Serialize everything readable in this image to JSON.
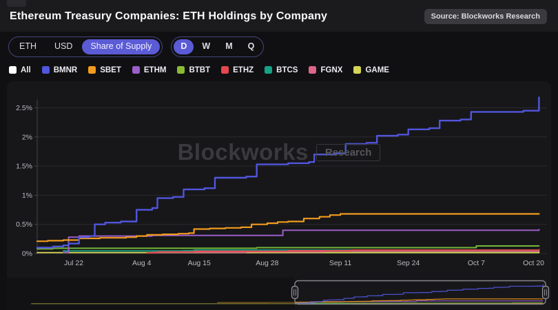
{
  "header": {
    "title": "Ethereum Treasury Companies: ETH Holdings by Company",
    "source_badge": "Source: Blockworks Research"
  },
  "controls": {
    "unit_toggle": [
      {
        "label": "ETH",
        "selected": false
      },
      {
        "label": "USD",
        "selected": false
      },
      {
        "label": "Share of Supply",
        "selected": true
      }
    ],
    "interval_toggle": [
      {
        "label": "D",
        "selected": true
      },
      {
        "label": "W",
        "selected": false
      },
      {
        "label": "M",
        "selected": false
      },
      {
        "label": "Q",
        "selected": false
      }
    ],
    "accent_color": "#5b5bd6"
  },
  "legend": {
    "items": [
      {
        "label": "All",
        "color": "#ffffff"
      },
      {
        "label": "BMNR",
        "color": "#5156dd"
      },
      {
        "label": "SBET",
        "color": "#f29b1d"
      },
      {
        "label": "ETHM",
        "color": "#9a5fc9"
      },
      {
        "label": "BTBT",
        "color": "#8bbb33"
      },
      {
        "label": "ETHZ",
        "color": "#e5484d"
      },
      {
        "label": "BTCS",
        "color": "#15a285"
      },
      {
        "label": "FGNX",
        "color": "#dc6589"
      },
      {
        "label": "GAME",
        "color": "#d5d655"
      }
    ]
  },
  "watermark": {
    "text": "Blockworks",
    "badge": "Research"
  },
  "chart_data": {
    "type": "line",
    "step": true,
    "title": "Ethereum Treasury Companies: ETH Holdings by Company",
    "unit": "Share of Supply (%)",
    "ylim": [
      0,
      2.75
    ],
    "grid": true,
    "y_ticks": [
      {
        "label": "0%",
        "value": 0
      },
      {
        "label": "0.5%",
        "value": 0.5
      },
      {
        "label": "1%",
        "value": 1
      },
      {
        "label": "1.5%",
        "value": 1.5
      },
      {
        "label": "2%",
        "value": 2
      },
      {
        "label": "2.5%",
        "value": 2.5
      }
    ],
    "x_domain_days": [
      0,
      97
    ],
    "x_ticks": [
      {
        "label": "Jul 22",
        "day": 7
      },
      {
        "label": "Aug 4",
        "day": 20
      },
      {
        "label": "Aug 15",
        "day": 31
      },
      {
        "label": "Aug 28",
        "day": 44
      },
      {
        "label": "Sep 11",
        "day": 58
      },
      {
        "label": "Sep 24",
        "day": 71
      },
      {
        "label": "Oct 7",
        "day": 84
      },
      {
        "label": "Oct 20",
        "day": 97
      }
    ],
    "series": [
      {
        "name": "GAME",
        "color": "#d5d655",
        "width": 1.8,
        "pre_points": [
          [
            -102,
            0.015
          ]
        ],
        "points": [
          [
            0,
            0.015
          ],
          [
            96,
            0.025
          ]
        ]
      },
      {
        "name": "FGNX",
        "color": "#dc6589",
        "width": 1.8,
        "points": [
          [
            22,
            0.02
          ],
          [
            40,
            0.03
          ],
          [
            55,
            0.04
          ],
          [
            96,
            0.045
          ]
        ]
      },
      {
        "name": "BTCS",
        "color": "#15a285",
        "width": 1.8,
        "points": [
          [
            5,
            0.045
          ],
          [
            28,
            0.05
          ],
          [
            30,
            0.06
          ],
          [
            96,
            0.065
          ]
        ]
      },
      {
        "name": "ETHZ",
        "color": "#e5484d",
        "width": 1.8,
        "points": [
          [
            21,
            0.01
          ],
          [
            23,
            0.03
          ],
          [
            30,
            0.04
          ],
          [
            48,
            0.05
          ],
          [
            60,
            0.06
          ],
          [
            96,
            0.07
          ]
        ]
      },
      {
        "name": "BTBT",
        "color": "#76b83a",
        "width": 2,
        "points": [
          [
            0,
            0.08
          ],
          [
            3,
            0.09
          ],
          [
            40,
            0.09
          ],
          [
            42,
            0.1
          ],
          [
            82,
            0.1
          ],
          [
            84,
            0.13
          ],
          [
            96,
            0.13
          ]
        ]
      },
      {
        "name": "ETHM",
        "color": "#9a5fc9",
        "width": 2,
        "points": [
          [
            5,
            0.02
          ],
          [
            6,
            0.28
          ],
          [
            8,
            0.3
          ],
          [
            20,
            0.3
          ],
          [
            22,
            0.31
          ],
          [
            45,
            0.31
          ],
          [
            47,
            0.4
          ],
          [
            94,
            0.4
          ],
          [
            96,
            0.41
          ]
        ]
      },
      {
        "name": "SBET",
        "color": "#f29b1d",
        "width": 2.2,
        "pre_points": [
          [
            -30,
            0.17
          ],
          [
            -10,
            0.19
          ]
        ],
        "points": [
          [
            0,
            0.21
          ],
          [
            2,
            0.22
          ],
          [
            5,
            0.23
          ],
          [
            8,
            0.26
          ],
          [
            12,
            0.27
          ],
          [
            17,
            0.28
          ],
          [
            19,
            0.3
          ],
          [
            21,
            0.32
          ],
          [
            24,
            0.33
          ],
          [
            27,
            0.34
          ],
          [
            29,
            0.35
          ],
          [
            30,
            0.42
          ],
          [
            33,
            0.43
          ],
          [
            36,
            0.44
          ],
          [
            39,
            0.45
          ],
          [
            41,
            0.5
          ],
          [
            44,
            0.52
          ],
          [
            46,
            0.54
          ],
          [
            48,
            0.55
          ],
          [
            51,
            0.6
          ],
          [
            54,
            0.63
          ],
          [
            56,
            0.66
          ],
          [
            58,
            0.68
          ],
          [
            96,
            0.68
          ]
        ]
      },
      {
        "name": "BMNR",
        "color": "#5156dd",
        "width": 2.4,
        "points": [
          [
            0,
            0.1
          ],
          [
            3,
            0.12
          ],
          [
            5,
            0.14
          ],
          [
            6,
            0.17
          ],
          [
            8,
            0.28
          ],
          [
            10,
            0.3
          ],
          [
            11,
            0.5
          ],
          [
            13,
            0.53
          ],
          [
            16,
            0.55
          ],
          [
            19,
            0.75
          ],
          [
            22,
            0.78
          ],
          [
            23,
            0.95
          ],
          [
            26,
            0.97
          ],
          [
            28,
            1.1
          ],
          [
            32,
            1.12
          ],
          [
            34,
            1.3
          ],
          [
            40,
            1.32
          ],
          [
            42,
            1.53
          ],
          [
            48,
            1.55
          ],
          [
            52,
            1.57
          ],
          [
            53,
            1.7
          ],
          [
            57,
            1.72
          ],
          [
            59,
            1.88
          ],
          [
            63,
            1.9
          ],
          [
            65,
            2.02
          ],
          [
            69,
            2.04
          ],
          [
            71,
            2.13
          ],
          [
            75,
            2.15
          ],
          [
            77,
            2.28
          ],
          [
            81,
            2.3
          ],
          [
            83,
            2.43
          ],
          [
            93,
            2.45
          ],
          [
            96,
            2.68
          ]
        ]
      }
    ],
    "navigator": {
      "domain_days": [
        -102,
        97
      ],
      "selection_days": [
        0,
        97
      ]
    },
    "colors": {
      "grid": "#2a2a2d",
      "axis": "#46464a",
      "tick_text": "#bcbcc0",
      "panel_bg": "#17171a",
      "brush_border": "#85858a"
    }
  }
}
